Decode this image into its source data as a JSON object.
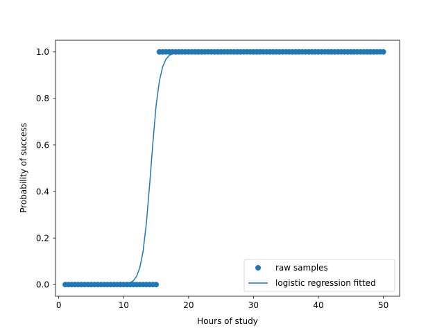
{
  "chart_data": {
    "type": "scatter",
    "xlabel": "Hours of study",
    "ylabel": "Probability of success",
    "xlim": [
      -0.5,
      52.5
    ],
    "ylim": [
      -0.05,
      1.05
    ],
    "xticks": [
      0,
      10,
      20,
      30,
      40,
      50
    ],
    "yticks": [
      0.0,
      0.2,
      0.4,
      0.6,
      0.8,
      1.0
    ],
    "xtick_labels": [
      "0",
      "10",
      "20",
      "30",
      "40",
      "50"
    ],
    "ytick_labels": [
      "0.0",
      "0.2",
      "0.4",
      "0.6",
      "0.8",
      "1.0"
    ],
    "grid": false,
    "legend_position": "lower-right",
    "series": [
      {
        "name": "raw samples",
        "kind": "scatter",
        "color": "#1f77b4",
        "x": [
          1.0,
          1.5,
          2.0,
          2.5,
          3.0,
          3.5,
          4.0,
          4.5,
          5.0,
          5.5,
          6.0,
          6.5,
          7.0,
          7.5,
          8.0,
          8.5,
          9.0,
          9.5,
          10.0,
          10.5,
          11.0,
          11.5,
          12.0,
          12.5,
          13.0,
          13.5,
          14.0,
          14.5,
          15.0,
          15.5,
          16.0,
          16.5,
          17.0,
          17.5,
          18.0,
          18.5,
          19.0,
          19.5,
          20.0,
          20.5,
          21.0,
          21.5,
          22.0,
          22.5,
          23.0,
          23.5,
          24.0,
          24.5,
          25.0,
          25.5,
          26.0,
          26.5,
          27.0,
          27.5,
          28.0,
          28.5,
          29.0,
          29.5,
          30.0,
          30.5,
          31.0,
          31.5,
          32.0,
          32.5,
          33.0,
          33.5,
          34.0,
          34.5,
          35.0,
          35.5,
          36.0,
          36.5,
          37.0,
          37.5,
          38.0,
          38.5,
          39.0,
          39.5,
          40.0,
          40.5,
          41.0,
          41.5,
          42.0,
          42.5,
          43.0,
          43.5,
          44.0,
          44.5,
          45.0,
          45.5,
          46.0,
          46.5,
          47.0,
          47.5,
          48.0,
          48.5,
          49.0,
          49.5,
          50.0
        ],
        "y": [
          0,
          0,
          0,
          0,
          0,
          0,
          0,
          0,
          0,
          0,
          0,
          0,
          0,
          0,
          0,
          0,
          0,
          0,
          0,
          0,
          0,
          0,
          0,
          0,
          0,
          0,
          0,
          0,
          0,
          1,
          1,
          1,
          1,
          1,
          1,
          1,
          1,
          1,
          1,
          1,
          1,
          1,
          1,
          1,
          1,
          1,
          1,
          1,
          1,
          1,
          1,
          1,
          1,
          1,
          1,
          1,
          1,
          1,
          1,
          1,
          1,
          1,
          1,
          1,
          1,
          1,
          1,
          1,
          1,
          1,
          1,
          1,
          1,
          1,
          1,
          1,
          1,
          1,
          1,
          1,
          1,
          1,
          1,
          1,
          1,
          1,
          1,
          1,
          1,
          1,
          1,
          1,
          1,
          1,
          1,
          1,
          1,
          1,
          1
        ]
      },
      {
        "name": "logistic regression fitted",
        "kind": "line",
        "color": "#1f77b4",
        "x": [
          1,
          2,
          3,
          4,
          5,
          6,
          7,
          8,
          9,
          10,
          10.5,
          11,
          11.5,
          12,
          12.5,
          13,
          13.5,
          14,
          14.5,
          15,
          15.5,
          16,
          16.5,
          17,
          17.5,
          18,
          18.5,
          19,
          19.5,
          20,
          21,
          22,
          23,
          24,
          25,
          26,
          28,
          30,
          35,
          40,
          45,
          50
        ],
        "y": [
          0,
          0,
          0,
          0,
          0,
          0,
          0,
          0.0001,
          0.0004,
          0.0017,
          0.0037,
          0.008,
          0.017,
          0.036,
          0.074,
          0.145,
          0.265,
          0.43,
          0.61,
          0.77,
          0.875,
          0.935,
          0.968,
          0.984,
          0.992,
          0.996,
          0.998,
          0.999,
          1,
          1,
          1,
          1,
          1,
          1,
          1,
          1,
          1,
          1,
          1,
          1,
          1,
          1
        ]
      }
    ]
  }
}
